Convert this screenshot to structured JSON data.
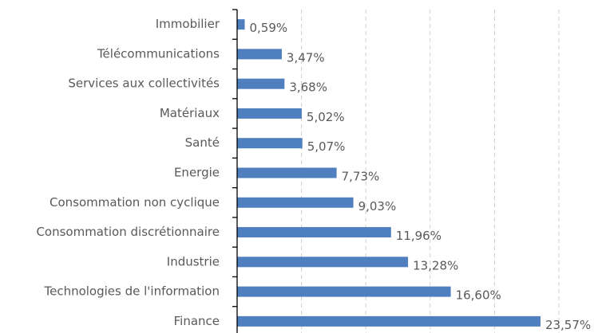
{
  "chart_data": {
    "type": "barh",
    "categories": [
      "Immobilier",
      "Télécommunications",
      "Services aux collectivités",
      "Matériaux",
      "Santé",
      "Energie",
      "Consommation non cyclique",
      "Consommation discrétionnaire",
      "Industrie",
      "Technologies de l'information",
      "Finance"
    ],
    "values": [
      0.59,
      3.47,
      3.68,
      5.02,
      5.07,
      7.73,
      9.03,
      11.96,
      13.28,
      16.6,
      23.57
    ],
    "value_labels": [
      "0,59%",
      "3,47%",
      "3,68%",
      "5,02%",
      "5,07%",
      "7,73%",
      "9,03%",
      "11,96%",
      "13,28%",
      "16,60%",
      "23,57%"
    ],
    "color": "#4f7fbf",
    "xlim": [
      0,
      25
    ],
    "xticks": [
      0,
      5,
      10,
      15,
      20,
      25
    ],
    "grid": true
  }
}
